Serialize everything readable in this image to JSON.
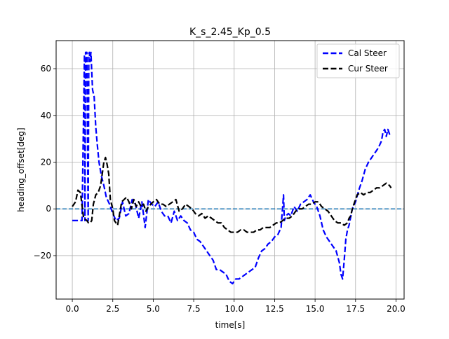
{
  "chart_data": {
    "type": "line",
    "title": "K_s_2.45_Kp_0.5",
    "xlabel": "time[s]",
    "ylabel": "heading_offset[deg]",
    "xlim": [
      -1.0,
      20.5
    ],
    "ylim": [
      -38.6,
      72.0
    ],
    "xticks": [
      0.0,
      2.5,
      5.0,
      7.5,
      10.0,
      12.5,
      15.0,
      17.5,
      20.0
    ],
    "xtick_labels": [
      "0.0",
      "2.5",
      "5.0",
      "7.5",
      "10.0",
      "12.5",
      "15.0",
      "17.5",
      "20.0"
    ],
    "yticks": [
      -20,
      0,
      20,
      40,
      60
    ],
    "ytick_labels": [
      "−20",
      "0",
      "20",
      "40",
      "60"
    ],
    "grid": true,
    "legend_position": "top-right",
    "reference_line": {
      "y": 0,
      "color": "#1f77b4",
      "style": "dashed"
    },
    "series": [
      {
        "name": "Cal Steer",
        "color": "#0000ff",
        "style": "dashed",
        "x": [
          0.0,
          0.3,
          0.6,
          0.75,
          0.78,
          0.82,
          0.9,
          0.98,
          1.02,
          1.05,
          1.1,
          1.15,
          1.25,
          1.35,
          1.45,
          1.55,
          1.65,
          1.8,
          1.95,
          2.1,
          2.3,
          2.5,
          2.7,
          2.9,
          3.1,
          3.3,
          3.5,
          3.7,
          3.9,
          4.1,
          4.3,
          4.5,
          4.7,
          4.9,
          5.1,
          5.3,
          5.5,
          5.7,
          5.9,
          6.1,
          6.3,
          6.5,
          6.7,
          6.9,
          7.1,
          7.3,
          7.5,
          7.7,
          7.9,
          8.1,
          8.3,
          8.5,
          8.7,
          8.9,
          9.1,
          9.3,
          9.5,
          9.7,
          9.9,
          10.1,
          10.3,
          10.5,
          10.7,
          10.9,
          11.1,
          11.3,
          11.5,
          11.7,
          11.9,
          12.1,
          12.3,
          12.5,
          12.7,
          12.9,
          13.05,
          13.1,
          13.15,
          13.2,
          13.35,
          13.5,
          13.7,
          13.9,
          14.1,
          14.3,
          14.5,
          14.7,
          14.9,
          15.1,
          15.3,
          15.5,
          15.7,
          15.9,
          16.1,
          16.3,
          16.5,
          16.6,
          16.7,
          16.8,
          16.9,
          17.0,
          17.1,
          17.3,
          17.5,
          17.7,
          17.9,
          18.1,
          18.3,
          18.5,
          18.7,
          18.9,
          19.1,
          19.2,
          19.3,
          19.4,
          19.5,
          19.6,
          19.7
        ],
        "y": [
          -5,
          -5,
          -5,
          66,
          -5,
          67,
          67,
          -5,
          66,
          67,
          63,
          67,
          51,
          48,
          35,
          27,
          20,
          14,
          10,
          5,
          2,
          -2,
          -5,
          -4,
          3,
          -3,
          -2,
          4,
          2,
          -4,
          3,
          -8,
          4,
          2,
          1,
          3,
          -1,
          -3,
          -3,
          -6,
          -1,
          -5,
          -3,
          -5,
          -6,
          -9,
          -10,
          -13,
          -14,
          -16,
          -18,
          -20,
          -22,
          -26,
          -26,
          -27,
          -28,
          -31,
          -32,
          -30,
          -30,
          -29,
          -28,
          -27,
          -26,
          -25,
          -21,
          -18,
          -17,
          -15,
          -14,
          -12,
          -11,
          -8,
          6,
          -5,
          -4,
          -3,
          -2,
          -3,
          1,
          -1,
          2,
          3,
          4,
          6,
          3,
          1,
          -3,
          -9,
          -12,
          -14,
          -16,
          -18,
          -23,
          -28,
          -30,
          -22,
          -13,
          -9,
          -7,
          0,
          3,
          8,
          12,
          17,
          20,
          22,
          24,
          26,
          29,
          33,
          34,
          31,
          34,
          32,
          33
        ],
        "notes": ""
      },
      {
        "name": "Cur Steer",
        "color": "#000000",
        "style": "dashed",
        "x": [
          0.0,
          0.2,
          0.35,
          0.5,
          0.7,
          0.9,
          1.0,
          1.1,
          1.2,
          1.3,
          1.45,
          1.6,
          1.75,
          1.85,
          1.95,
          2.05,
          2.15,
          2.25,
          2.35,
          2.5,
          2.6,
          2.7,
          2.8,
          2.9,
          3.05,
          3.2,
          3.35,
          3.5,
          3.65,
          3.8,
          3.95,
          4.1,
          4.25,
          4.4,
          4.55,
          4.7,
          4.85,
          5.0,
          5.2,
          5.4,
          5.6,
          5.8,
          6.0,
          6.2,
          6.4,
          6.6,
          6.8,
          7.0,
          7.2,
          7.4,
          7.6,
          7.8,
          8.0,
          8.2,
          8.4,
          8.6,
          8.8,
          9.0,
          9.2,
          9.4,
          9.6,
          9.8,
          10.0,
          10.2,
          10.4,
          10.6,
          10.8,
          11.0,
          11.2,
          11.4,
          11.6,
          11.8,
          12.0,
          12.2,
          12.4,
          12.6,
          12.8,
          13.0,
          13.2,
          13.4,
          13.6,
          13.8,
          14.0,
          14.2,
          14.4,
          14.6,
          14.8,
          15.0,
          15.2,
          15.4,
          15.6,
          15.8,
          16.0,
          16.2,
          16.4,
          16.6,
          16.8,
          17.0,
          17.1,
          17.2,
          17.3,
          17.4,
          17.6,
          17.8,
          18.0,
          18.2,
          18.4,
          18.6,
          18.8,
          19.0,
          19.2,
          19.4,
          19.6,
          19.7
        ],
        "y": [
          1,
          3,
          8,
          7,
          -4,
          -5,
          -6,
          -6,
          -5,
          2,
          6,
          7,
          10,
          15,
          20,
          22,
          19,
          15,
          4,
          0,
          -5,
          -6,
          -7,
          -3,
          3,
          4,
          5,
          3,
          0,
          4,
          1,
          3,
          1,
          2,
          -1,
          1,
          2,
          3,
          4,
          2,
          2,
          1,
          2,
          3,
          4,
          -1,
          0,
          2,
          1,
          0,
          -2,
          -3,
          -2,
          -4,
          -3,
          -4,
          -5,
          -6,
          -6,
          -8,
          -9,
          -10,
          -10,
          -10,
          -9,
          -9,
          -10,
          -10,
          -10,
          -9,
          -9,
          -8,
          -8,
          -8,
          -7,
          -6,
          -6,
          -5,
          -4,
          -4,
          -3,
          -1,
          0,
          0,
          1,
          2,
          2,
          3,
          3,
          1,
          0,
          -1,
          -3,
          -5,
          -6,
          -6,
          -7,
          -6,
          -4,
          -3,
          0,
          2,
          6,
          7,
          6,
          7,
          7,
          8,
          9,
          9,
          10,
          11,
          10,
          9
        ],
        "notes": ""
      }
    ]
  }
}
